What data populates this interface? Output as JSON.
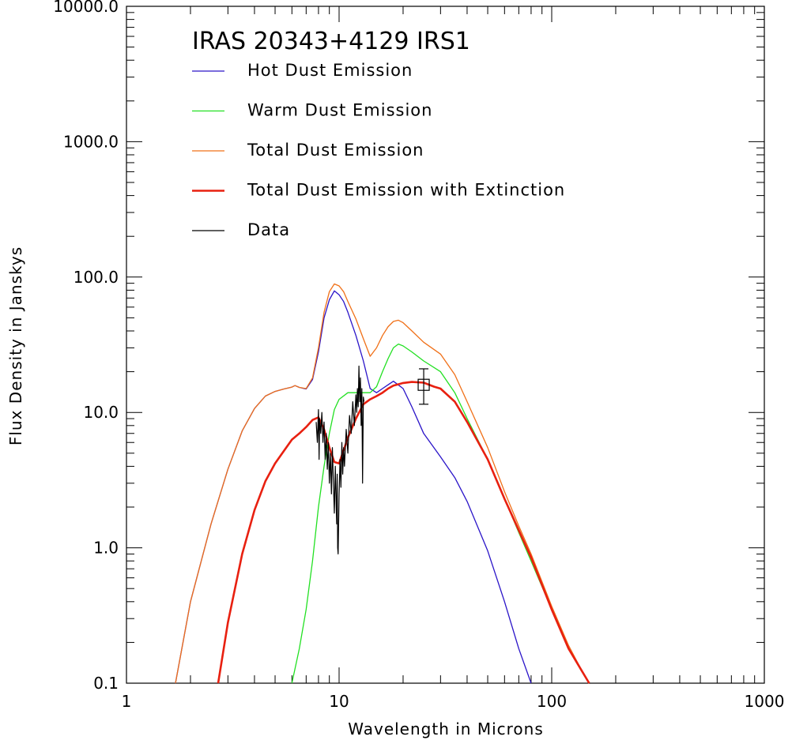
{
  "chart_data": {
    "type": "line",
    "title": "IRAS 20343+4129 IRS1",
    "xlabel": "Wavelength in Microns",
    "ylabel": "Flux Density in Janskys",
    "xscale": "log",
    "yscale": "log",
    "xlim": [
      1,
      1000
    ],
    "ylim": [
      0.1,
      10000
    ],
    "xticks": [
      {
        "value": 1,
        "label": "1"
      },
      {
        "value": 10,
        "label": "10"
      },
      {
        "value": 100,
        "label": "100"
      },
      {
        "value": 1000,
        "label": "1000"
      }
    ],
    "yticks": [
      {
        "value": 0.1,
        "label": "0.1"
      },
      {
        "value": 1,
        "label": "1.0"
      },
      {
        "value": 10,
        "label": "10.0"
      },
      {
        "value": 100,
        "label": "100.0"
      },
      {
        "value": 1000,
        "label": "1000.0"
      },
      {
        "value": 10000,
        "label": "10000.0"
      }
    ],
    "grid": false,
    "legend_position": "top-left",
    "series": [
      {
        "name": "Hot Dust Emission",
        "color": "#2a14c8",
        "style": "thin",
        "x": [
          1.7,
          2.0,
          2.5,
          3.0,
          3.5,
          4.0,
          4.5,
          5.0,
          5.5,
          6.0,
          6.2,
          6.5,
          7.0,
          7.5,
          8.0,
          8.5,
          9.0,
          9.5,
          10.0,
          10.5,
          11.0,
          12.0,
          13.0,
          14.0,
          15.0,
          16.0,
          17.0,
          18.0,
          20.0,
          22.0,
          25.0,
          30.0,
          35.0,
          40.0,
          50.0,
          60.0,
          70.0,
          80.0
        ],
        "y": [
          0.1,
          0.4,
          1.5,
          3.8,
          7.3,
          10.7,
          13.2,
          14.3,
          14.9,
          15.4,
          15.8,
          15.3,
          14.9,
          17.5,
          28.0,
          50.0,
          68.0,
          79.0,
          74.0,
          66.0,
          55.0,
          37.0,
          24.0,
          15.0,
          14.0,
          15.0,
          16.0,
          17.0,
          15.0,
          11.0,
          7.0,
          4.7,
          3.3,
          2.2,
          0.95,
          0.4,
          0.18,
          0.08
        ]
      },
      {
        "name": "Warm Dust Emission",
        "color": "#22e022",
        "style": "thin",
        "x": [
          6.0,
          6.5,
          7.0,
          7.5,
          8.0,
          8.5,
          9.0,
          9.5,
          10.0,
          11.0,
          12.0,
          13.0,
          14.0,
          15.0,
          16.0,
          17.0,
          18.0,
          19.0,
          20.0,
          22.0,
          25.0,
          30.0,
          35.0,
          40.0,
          50.0,
          60.0,
          70.0,
          80.0,
          100.0,
          120.0,
          140.0,
          150.0
        ],
        "y": [
          0.09,
          0.18,
          0.35,
          0.8,
          2.0,
          4.0,
          7.0,
          10.5,
          12.5,
          14.0,
          14.0,
          14.0,
          14.0,
          15.5,
          20.0,
          25.0,
          30.0,
          32.0,
          31.0,
          28.0,
          24.0,
          20.0,
          14.0,
          9.0,
          4.5,
          2.3,
          1.3,
          0.8,
          0.35,
          0.18,
          0.12,
          0.09
        ]
      },
      {
        "name": "Total Dust Emission",
        "color": "#f07018",
        "style": "thin",
        "x": [
          1.7,
          2.0,
          2.5,
          3.0,
          3.5,
          4.0,
          4.5,
          5.0,
          5.5,
          6.0,
          6.2,
          6.5,
          7.0,
          7.5,
          8.0,
          8.5,
          9.0,
          9.5,
          10.0,
          10.5,
          11.0,
          12.0,
          13.0,
          14.0,
          15.0,
          16.0,
          17.0,
          18.0,
          19.0,
          20.0,
          22.0,
          25.0,
          30.0,
          35.0,
          40.0,
          50.0,
          60.0,
          70.0,
          80.0,
          100.0,
          120.0,
          140.0,
          150.0
        ],
        "y": [
          0.1,
          0.4,
          1.5,
          3.8,
          7.3,
          10.7,
          13.2,
          14.3,
          14.9,
          15.4,
          15.8,
          15.3,
          15.0,
          18.0,
          30.0,
          55.0,
          78.0,
          89.0,
          86.0,
          78.0,
          66.0,
          49.0,
          35.0,
          26.0,
          30.0,
          37.0,
          43.0,
          47.0,
          48.0,
          46.0,
          40.0,
          33.0,
          27.0,
          19.0,
          12.0,
          5.5,
          2.6,
          1.45,
          0.9,
          0.37,
          0.19,
          0.12,
          0.1
        ]
      },
      {
        "name": "Total Dust Emission with Extinction",
        "color": "#e82010",
        "style": "thick",
        "x": [
          2.7,
          3.0,
          3.5,
          4.0,
          4.5,
          5.0,
          5.5,
          6.0,
          6.5,
          7.0,
          7.5,
          8.0,
          8.5,
          9.0,
          9.5,
          10.0,
          11.0,
          12.0,
          13.0,
          14.0,
          15.0,
          16.0,
          17.0,
          18.0,
          20.0,
          22.0,
          25.0,
          28.0,
          30.0,
          35.0,
          40.0,
          50.0,
          60.0,
          70.0,
          80.0,
          100.0,
          120.0,
          140.0,
          150.0
        ],
        "y": [
          0.1,
          0.28,
          0.9,
          1.9,
          3.1,
          4.2,
          5.2,
          6.3,
          7.0,
          7.8,
          8.8,
          9.2,
          7.5,
          5.5,
          4.3,
          4.2,
          6.5,
          9.0,
          11.5,
          12.5,
          13.2,
          14.0,
          15.0,
          15.8,
          16.5,
          16.8,
          16.6,
          15.5,
          15.0,
          12.0,
          8.5,
          4.5,
          2.3,
          1.35,
          0.85,
          0.35,
          0.18,
          0.12,
          0.1
        ]
      },
      {
        "name": "Data",
        "color": "#000000",
        "style": "spectrum",
        "x": [
          7.8,
          7.9,
          8.0,
          8.05,
          8.1,
          8.2,
          8.3,
          8.4,
          8.5,
          8.6,
          8.7,
          8.8,
          8.9,
          9.0,
          9.1,
          9.2,
          9.3,
          9.4,
          9.5,
          9.6,
          9.7,
          9.75,
          9.8,
          9.85,
          9.9,
          10.0,
          10.1,
          10.2,
          10.3,
          10.4,
          10.5,
          10.6,
          10.8,
          11.0,
          11.2,
          11.4,
          11.6,
          11.8,
          12.0,
          12.1,
          12.2,
          12.3,
          12.4,
          12.5,
          12.6,
          12.7,
          12.8,
          12.9,
          13.0,
          13.1
        ],
        "y": [
          8.5,
          6.0,
          10.5,
          4.5,
          9.0,
          7.0,
          10.0,
          6.0,
          8.5,
          4.5,
          7.0,
          3.8,
          6.0,
          3.0,
          5.0,
          2.5,
          5.5,
          3.0,
          1.8,
          4.0,
          2.0,
          1.5,
          3.5,
          1.0,
          0.9,
          2.5,
          4.5,
          2.8,
          6.0,
          3.5,
          5.5,
          4.0,
          7.5,
          5.0,
          9.5,
          7.0,
          12.0,
          8.0,
          13.5,
          10.0,
          15.0,
          11.0,
          22.0,
          12.0,
          18.0,
          8.0,
          15.0,
          3.0,
          13.0,
          12.0
        ]
      }
    ],
    "points": [
      {
        "x": 25.0,
        "y": 16.0,
        "yerr_low": 11.5,
        "yerr_high": 21.0,
        "marker": "square",
        "color": "#000000"
      }
    ]
  }
}
